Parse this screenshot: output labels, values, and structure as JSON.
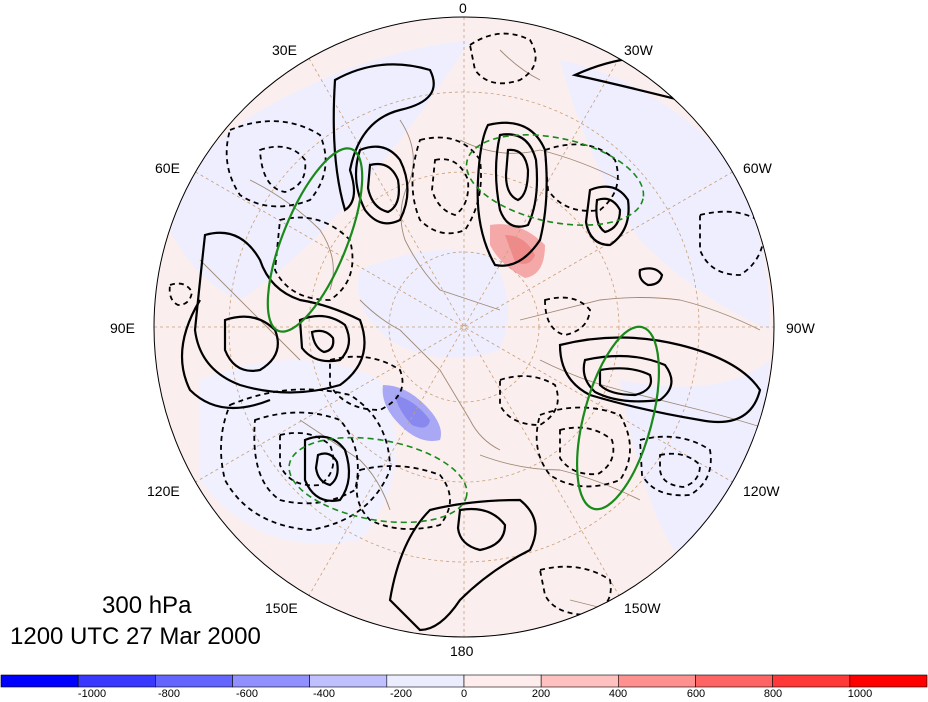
{
  "map": {
    "projection": "polar-stereographic-north",
    "longitude_labels": [
      {
        "text": "0",
        "lon": 0
      },
      {
        "text": "30W",
        "lon": -30
      },
      {
        "text": "60W",
        "lon": -60
      },
      {
        "text": "90W",
        "lon": -90
      },
      {
        "text": "120W",
        "lon": -120
      },
      {
        "text": "150W",
        "lon": -150
      },
      {
        "text": "180",
        "lon": 180
      },
      {
        "text": "150E",
        "lon": 150
      },
      {
        "text": "120E",
        "lon": 120
      },
      {
        "text": "90E",
        "lon": 90
      },
      {
        "text": "60E",
        "lon": 60
      },
      {
        "text": "30E",
        "lon": 30
      }
    ],
    "contour_styles": {
      "positive": "solid-black",
      "negative": "dashed-black",
      "highlight": "green"
    }
  },
  "caption": {
    "level": "300 hPa",
    "time": "1200 UTC 27 Mar 2000"
  },
  "colorbar": {
    "ticks": [
      "-1000",
      "-800",
      "-600",
      "-400",
      "-200",
      "0",
      "200",
      "400",
      "600",
      "800",
      "1000"
    ],
    "colors": [
      "#0000ff",
      "#3838ff",
      "#6464ff",
      "#9090ff",
      "#c0c0ff",
      "#ececff",
      "#ffecec",
      "#ffc0c0",
      "#ff9090",
      "#ff6464",
      "#ff3838",
      "#ff0000"
    ]
  }
}
